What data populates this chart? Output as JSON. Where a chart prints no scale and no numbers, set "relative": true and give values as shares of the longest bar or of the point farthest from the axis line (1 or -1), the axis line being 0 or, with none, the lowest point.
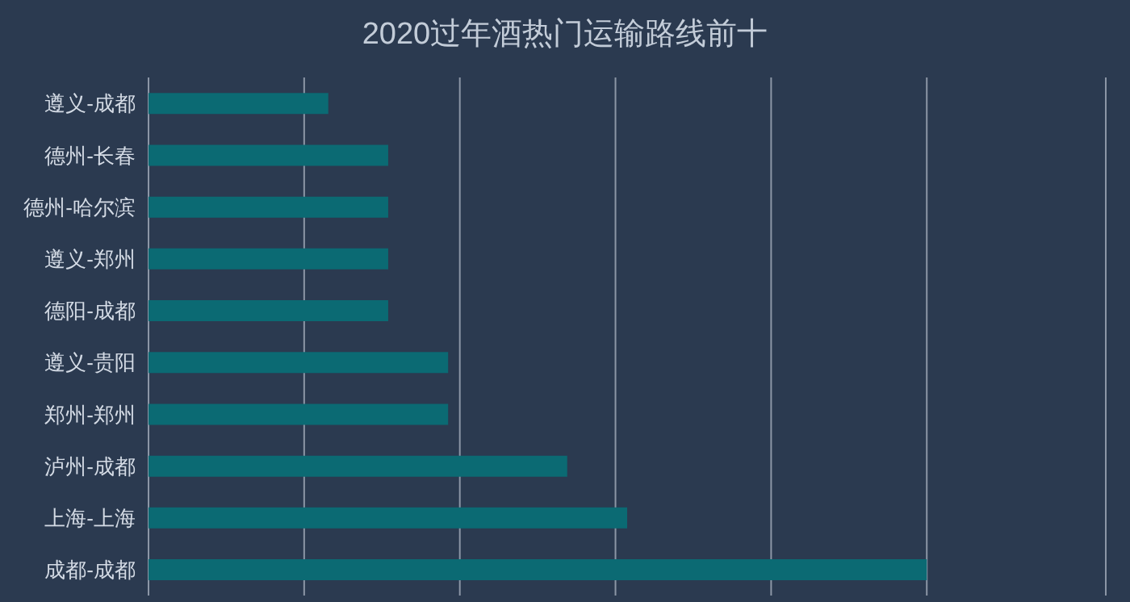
{
  "chart_data": {
    "type": "bar",
    "title": "2020过年酒热门运输路线前十",
    "orientation": "horizontal",
    "relative": true,
    "grid": "x",
    "categories": [
      "遵义-成都",
      "德州-长春",
      "德州-哈尔滨",
      "遵义-郑州",
      "德阳-成都",
      "遵义-贵阳",
      "郑州-郑州",
      "泸州-成都",
      "上海-上海",
      "成都-成都"
    ],
    "values": [
      0.231,
      0.308,
      0.308,
      0.308,
      0.308,
      0.385,
      0.385,
      0.538,
      0.615,
      1
    ],
    "color": "#0b6a73"
  }
}
